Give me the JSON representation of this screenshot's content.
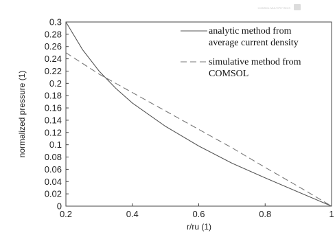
{
  "chart_data": {
    "type": "line",
    "xlabel": "r/ru (1)",
    "ylabel": "normalized pressure (1)",
    "xlim": [
      0.2,
      1.0
    ],
    "ylim": [
      0,
      0.3
    ],
    "x_ticks": [
      "0.2",
      "0.4",
      "0.6",
      "0.8",
      "1"
    ],
    "y_ticks": [
      "0",
      "0.02",
      "0.04",
      "0.06",
      "0.08",
      "0.1",
      "0.12",
      "0.14",
      "0.16",
      "0.18",
      "0.2",
      "0.22",
      "0.24",
      "0.26",
      "0.28",
      "0.3"
    ],
    "grid": false,
    "legend_position": "top-right",
    "series": [
      {
        "name": "analytic method from average current density",
        "legend_lines": [
          "analytic method from",
          "average current density"
        ],
        "style": "solid",
        "color": "#555555",
        "x": [
          0.2,
          0.25,
          0.3,
          0.35,
          0.4,
          0.5,
          0.6,
          0.7,
          0.8,
          0.9,
          1.0
        ],
        "y": [
          0.3,
          0.255,
          0.22,
          0.192,
          0.168,
          0.13,
          0.098,
          0.07,
          0.046,
          0.023,
          0.0
        ]
      },
      {
        "name": "simulative method from COMSOL",
        "legend_lines": [
          "simulative method from",
          "COMSOL"
        ],
        "style": "dashed",
        "color": "#777777",
        "x": [
          0.2,
          0.3,
          0.4,
          0.5,
          0.6,
          0.7,
          0.8,
          0.9,
          1.0
        ],
        "y": [
          0.25,
          0.215,
          0.185,
          0.155,
          0.125,
          0.095,
          0.063,
          0.032,
          0.0
        ]
      }
    ]
  },
  "watermark": {
    "text": "COMSOL MULTIPHYSICS",
    "icon": "comsol-logo-icon"
  }
}
